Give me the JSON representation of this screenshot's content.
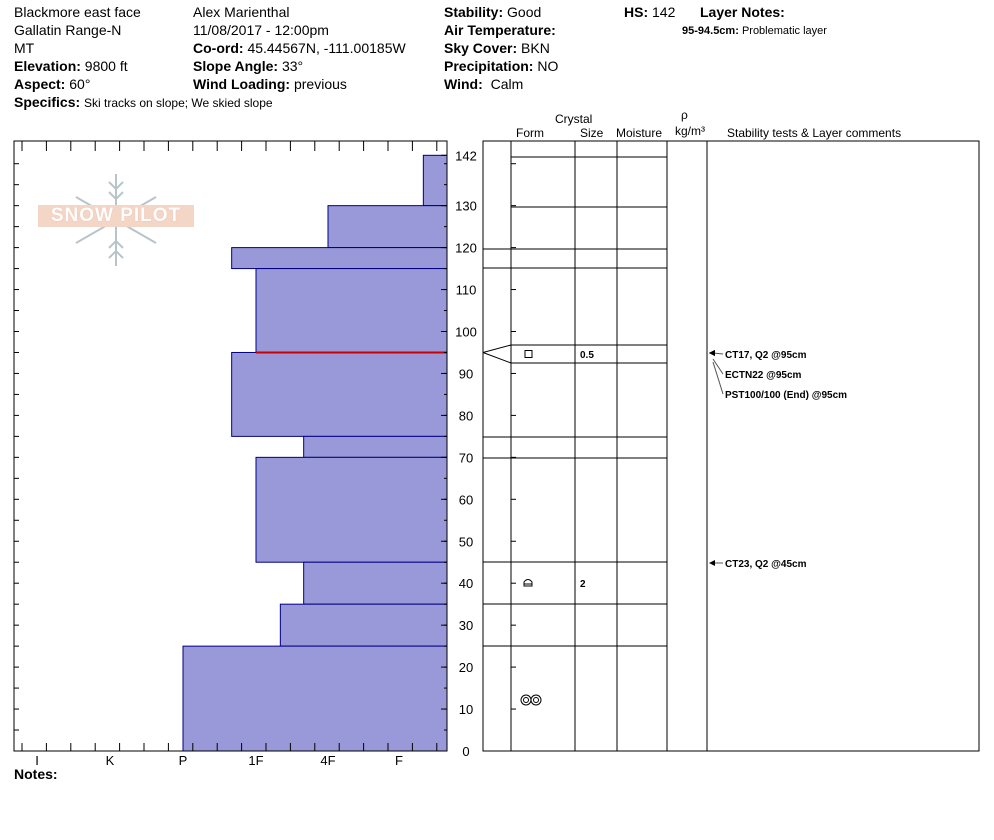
{
  "header": {
    "location": "Blackmore east face",
    "range": "Gallatin Range-N",
    "state": "MT",
    "elevation_label": "Elevation:",
    "elevation_value": "9800 ft",
    "aspect_label": "Aspect:",
    "aspect_value": "60°",
    "specifics_label": "Specifics:",
    "specifics_value": "Ski tracks on slope; We skied slope",
    "observer": "Alex Marienthal",
    "datetime": "11/08/2017 - 12:00pm",
    "coord_label": "Co-ord:",
    "coord_value": "45.44567N, -111.00185W",
    "slope_label": "Slope Angle:",
    "slope_value": "33°",
    "wind_loading_label": "Wind Loading:",
    "wind_loading_value": "previous",
    "stability_label": "Stability:",
    "stability_value": "Good",
    "air_temp_label": "Air Temperature:",
    "sky_label": "Sky Cover:",
    "sky_value": "BKN",
    "precip_label": "Precipitation:",
    "precip_value": "NO",
    "wind_label": "Wind:",
    "wind_value": "Calm",
    "hs_label": "HS:",
    "hs_value": "142",
    "layer_notes_label": "Layer Notes:",
    "layer_note_depth": "95-94.5cm:",
    "layer_note_text": "Problematic layer"
  },
  "table_headers": {
    "crystal": "Crystal",
    "form": "Form",
    "size": "Size",
    "moisture": "Moisture",
    "rho": "ρ",
    "density_unit": "kg/m³",
    "stability_comments": "Stability tests & Layer comments"
  },
  "notes_label": "Notes:",
  "logo_text": "SNOW PILOT",
  "chart_data": {
    "type": "bar",
    "orientation": "horizontal",
    "description_axis": "hardness",
    "x_ticks": [
      "I",
      "K",
      "P",
      "1F",
      "4F",
      "F"
    ],
    "y_range": [
      0,
      145
    ],
    "y_ticks": [
      0,
      10,
      20,
      30,
      40,
      50,
      60,
      70,
      80,
      90,
      100,
      110,
      120,
      130,
      142
    ],
    "colors": {
      "layer_fill": "#9999d9",
      "layer_stroke": "#000080",
      "weak_layer": "#cc0000"
    },
    "layers": [
      {
        "bottom": 130,
        "top": 142,
        "hardness": "F+"
      },
      {
        "bottom": 120,
        "top": 130,
        "hardness": "4F"
      },
      {
        "bottom": 115,
        "top": 120,
        "hardness": "1F-"
      },
      {
        "bottom": 95,
        "top": 115,
        "hardness": "1F"
      },
      {
        "bottom": 75,
        "top": 95,
        "hardness": "1F-"
      },
      {
        "bottom": 70,
        "top": 75,
        "hardness": "4F-"
      },
      {
        "bottom": 45,
        "top": 70,
        "hardness": "1F"
      },
      {
        "bottom": 35,
        "top": 45,
        "hardness": "4F-"
      },
      {
        "bottom": 25,
        "top": 35,
        "hardness": "1F+"
      },
      {
        "bottom": 0,
        "top": 25,
        "hardness": "P"
      }
    ],
    "weak_layer_depth": 95,
    "crystal_rows": [
      {
        "depth": 95,
        "form": "square",
        "size": "0.5"
      },
      {
        "depth": 40,
        "form": "cup",
        "size": "2"
      },
      {
        "depth": 12,
        "form": "rounds",
        "size": ""
      }
    ],
    "tests": [
      {
        "depth": 95,
        "text": "CT17, Q2 @95cm"
      },
      {
        "depth": 95,
        "text": "ECTN22 @95cm"
      },
      {
        "depth": 95,
        "text": "PST100/100 (End) @95cm"
      },
      {
        "depth": 45,
        "text": "CT23, Q2 @45cm"
      }
    ]
  }
}
